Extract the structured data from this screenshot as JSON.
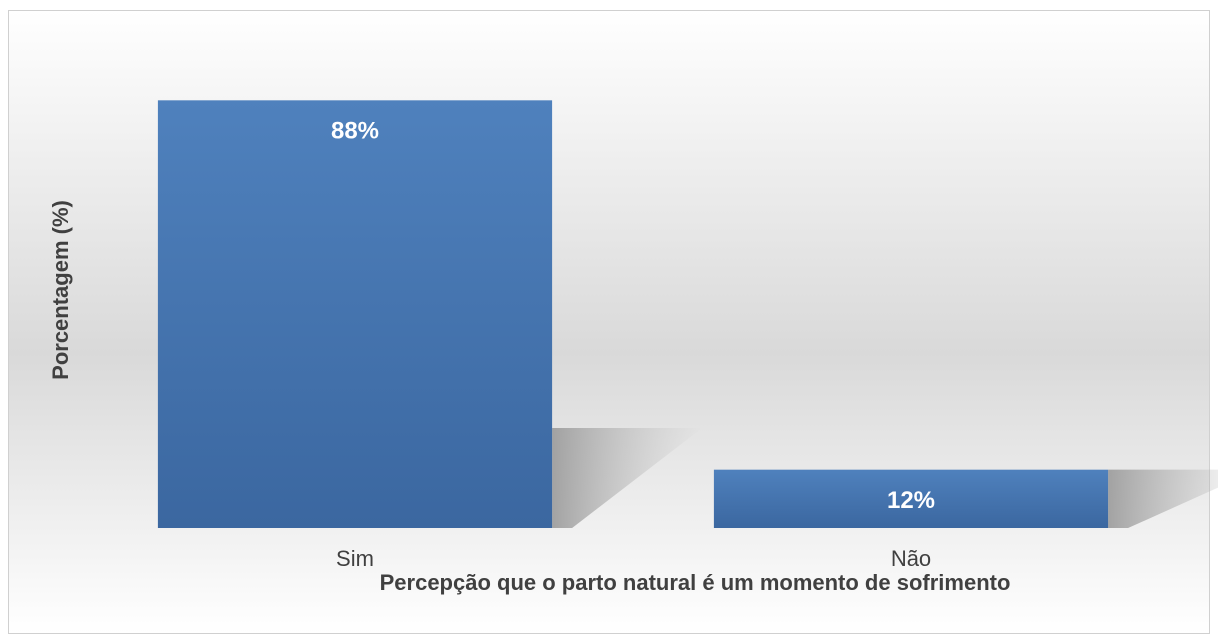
{
  "chart_data": {
    "type": "bar",
    "categories": [
      "Sim",
      "Não"
    ],
    "values": [
      88,
      12
    ],
    "value_labels": [
      "88%",
      "12%"
    ],
    "color": "#4a7ebb",
    "ylim": [
      0,
      100
    ],
    "y_label": "Porcentagem (%)",
    "x_label": "Percepção que o parto natural é um momento de sofrimento"
  }
}
